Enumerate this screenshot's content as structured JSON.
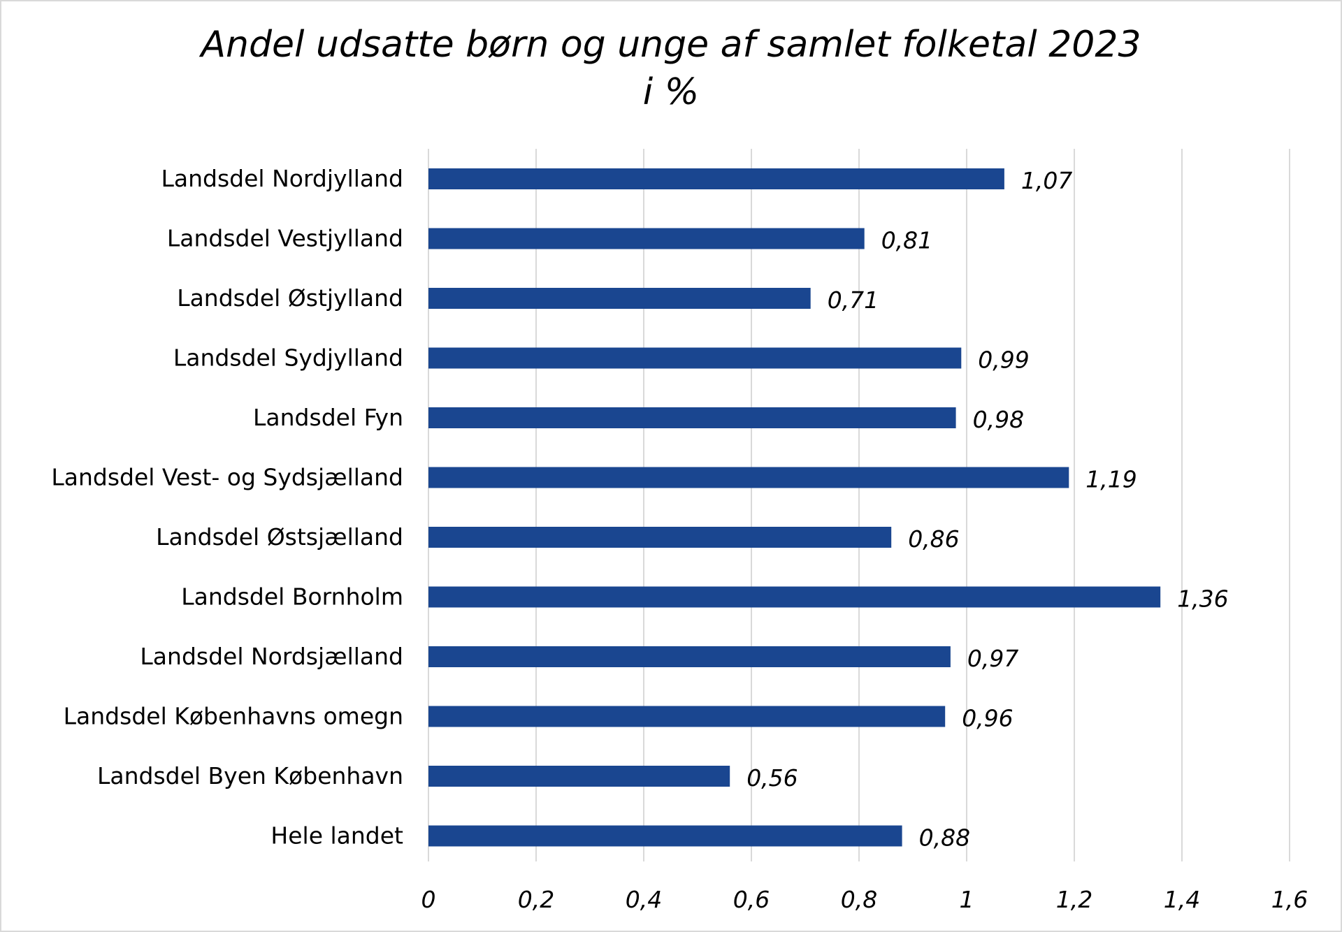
{
  "title_line1": "Andel udsatte børn og unge af samlet folketal 2023",
  "title_line2": "i %",
  "colors": {
    "bar": "#1a4690",
    "grid": "#d9d9d9",
    "text": "#000000"
  },
  "chart_data": {
    "type": "bar",
    "orientation": "horizontal",
    "title": "Andel udsatte børn og unge af samlet folketal 2023 i %",
    "categories": [
      "Landsdel Nordjylland",
      "Landsdel Vestjylland",
      "Landsdel Østjylland",
      "Landsdel Sydjylland",
      "Landsdel Fyn",
      "Landsdel Vest- og Sydsjælland",
      "Landsdel Østsjælland",
      "Landsdel Bornholm",
      "Landsdel Nordsjælland",
      "Landsdel Københavns omegn",
      "Landsdel Byen København",
      "Hele landet"
    ],
    "values": [
      1.07,
      0.81,
      0.71,
      0.99,
      0.98,
      1.19,
      0.86,
      1.36,
      0.97,
      0.96,
      0.56,
      0.88
    ],
    "value_labels": [
      "1,07",
      "0,81",
      "0,71",
      "0,99",
      "0,98",
      "1,19",
      "0,86",
      "1,36",
      "0,97",
      "0,96",
      "0,56",
      "0,88"
    ],
    "xlim": [
      0,
      1.6
    ],
    "xticks": [
      0,
      0.2,
      0.4,
      0.6,
      0.8,
      1,
      1.2,
      1.4,
      1.6
    ],
    "xtick_labels": [
      "0",
      "0,2",
      "0,4",
      "0,6",
      "0,8",
      "1",
      "1,2",
      "1,4",
      "1,6"
    ],
    "xlabel": "",
    "ylabel": "",
    "grid": "vertical",
    "legend": "none",
    "data_labels": "outside-end"
  }
}
